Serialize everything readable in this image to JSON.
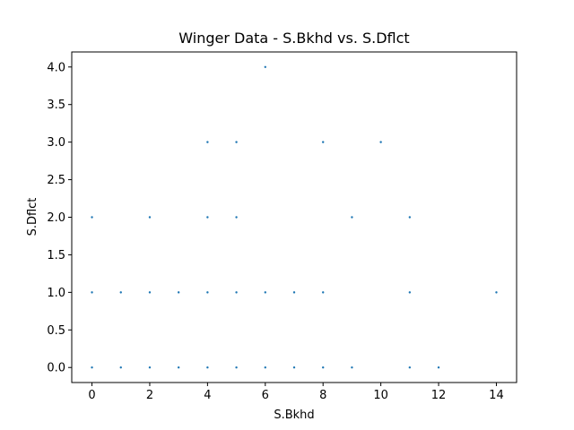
{
  "chart_data": {
    "type": "scatter",
    "title": "Winger Data - S.Bkhd vs. S.Dflct",
    "xlabel": "S.Bkhd",
    "ylabel": "S.Dflct",
    "xlim": [
      -0.7,
      14.7
    ],
    "ylim": [
      -0.2,
      4.2
    ],
    "xticks": [
      0,
      2,
      4,
      6,
      8,
      10,
      12,
      14
    ],
    "xtick_labels": [
      "0",
      "2",
      "4",
      "6",
      "8",
      "10",
      "12",
      "14"
    ],
    "yticks": [
      0.0,
      0.5,
      1.0,
      1.5,
      2.0,
      2.5,
      3.0,
      3.5,
      4.0
    ],
    "ytick_labels": [
      "0.0",
      "0.5",
      "1.0",
      "1.5",
      "2.0",
      "2.5",
      "3.0",
      "3.5",
      "4.0"
    ],
    "grid": false,
    "marker_color": "#1f77b4",
    "points": [
      {
        "x": 0,
        "y": 0
      },
      {
        "x": 1,
        "y": 0
      },
      {
        "x": 2,
        "y": 0
      },
      {
        "x": 3,
        "y": 0
      },
      {
        "x": 4,
        "y": 0
      },
      {
        "x": 5,
        "y": 0
      },
      {
        "x": 6,
        "y": 0
      },
      {
        "x": 7,
        "y": 0
      },
      {
        "x": 8,
        "y": 0
      },
      {
        "x": 9,
        "y": 0
      },
      {
        "x": 11,
        "y": 0
      },
      {
        "x": 12,
        "y": 0
      },
      {
        "x": 0,
        "y": 1
      },
      {
        "x": 1,
        "y": 1
      },
      {
        "x": 2,
        "y": 1
      },
      {
        "x": 3,
        "y": 1
      },
      {
        "x": 4,
        "y": 1
      },
      {
        "x": 5,
        "y": 1
      },
      {
        "x": 6,
        "y": 1
      },
      {
        "x": 7,
        "y": 1
      },
      {
        "x": 8,
        "y": 1
      },
      {
        "x": 11,
        "y": 1
      },
      {
        "x": 14,
        "y": 1
      },
      {
        "x": 0,
        "y": 2
      },
      {
        "x": 2,
        "y": 2
      },
      {
        "x": 4,
        "y": 2
      },
      {
        "x": 5,
        "y": 2
      },
      {
        "x": 9,
        "y": 2
      },
      {
        "x": 11,
        "y": 2
      },
      {
        "x": 4,
        "y": 3
      },
      {
        "x": 5,
        "y": 3
      },
      {
        "x": 8,
        "y": 3
      },
      {
        "x": 10,
        "y": 3
      },
      {
        "x": 6,
        "y": 4
      }
    ]
  }
}
